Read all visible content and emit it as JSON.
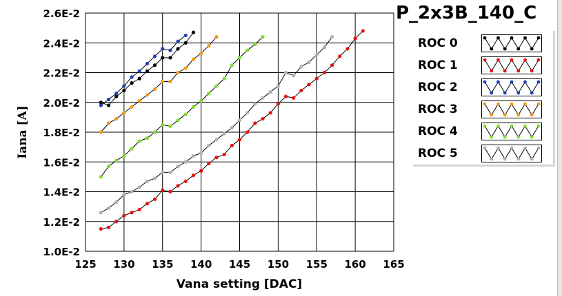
{
  "chart_data": {
    "type": "line",
    "title": "P_2x3B_140_C",
    "xlabel": "Vana setting [DAC]",
    "ylabel": "Iana [A]",
    "xlim": [
      125,
      165
    ],
    "ylim": [
      0.01,
      0.026
    ],
    "x_ticks": [
      125,
      130,
      135,
      140,
      145,
      150,
      155,
      160,
      165
    ],
    "x_tick_labels": [
      "125",
      "130",
      "135",
      "140",
      "145",
      "150",
      "155",
      "160",
      "165"
    ],
    "y_ticks": [
      0.01,
      0.012,
      0.014,
      0.016,
      0.018,
      0.02,
      0.022,
      0.024,
      0.026
    ],
    "y_tick_labels": [
      "1.0E-2",
      "1.2E-2",
      "1.4E-2",
      "1.6E-2",
      "1.8E-2",
      "2.0E-2",
      "2.2E-2",
      "2.4E-2",
      "2.6E-2"
    ],
    "grid": true,
    "legend_placement": "right",
    "series": [
      {
        "name": "ROC 0",
        "color": "#000000",
        "x": [
          127,
          128,
          129,
          130,
          131,
          132,
          133,
          134,
          135,
          136,
          137,
          138,
          139
        ],
        "y": [
          0.02,
          0.0198,
          0.0204,
          0.0208,
          0.0213,
          0.0216,
          0.0221,
          0.0225,
          0.023,
          0.023,
          0.0236,
          0.024,
          0.0247
        ]
      },
      {
        "name": "ROC 1",
        "color": "#e8120c",
        "x": [
          127,
          128,
          129,
          130,
          131,
          132,
          133,
          134,
          135,
          136,
          137,
          138,
          139,
          140,
          141,
          142,
          143,
          144,
          145,
          146,
          147,
          148,
          149,
          150,
          151,
          152,
          153,
          154,
          155,
          156,
          157,
          158,
          159,
          160,
          161
        ],
        "y": [
          0.0115,
          0.0116,
          0.012,
          0.0124,
          0.0126,
          0.0128,
          0.0132,
          0.0135,
          0.0141,
          0.014,
          0.0144,
          0.0147,
          0.0151,
          0.0154,
          0.0159,
          0.0163,
          0.0165,
          0.0171,
          0.0175,
          0.018,
          0.0186,
          0.0189,
          0.0193,
          0.0199,
          0.0204,
          0.0203,
          0.0208,
          0.0212,
          0.0216,
          0.022,
          0.0225,
          0.0231,
          0.0236,
          0.0243,
          0.0248
        ]
      },
      {
        "name": "ROC 2",
        "color": "#1c3fc0",
        "x": [
          127,
          128,
          129,
          130,
          131,
          132,
          133,
          134,
          135,
          136,
          137,
          138
        ],
        "y": [
          0.0198,
          0.0202,
          0.0206,
          0.0211,
          0.0217,
          0.0221,
          0.0226,
          0.0231,
          0.0236,
          0.0235,
          0.0241,
          0.0245
        ]
      },
      {
        "name": "ROC 3",
        "color": "#f59a12",
        "x": [
          127,
          128,
          129,
          130,
          131,
          132,
          133,
          134,
          135,
          136,
          137,
          138,
          139,
          140,
          141,
          142
        ],
        "y": [
          0.018,
          0.0186,
          0.0189,
          0.0193,
          0.0197,
          0.0201,
          0.0205,
          0.0209,
          0.0214,
          0.0214,
          0.022,
          0.0223,
          0.0229,
          0.0233,
          0.0238,
          0.0244
        ]
      },
      {
        "name": "ROC 4",
        "color": "#7fdc2a",
        "x": [
          127,
          128,
          129,
          130,
          131,
          132,
          133,
          134,
          135,
          136,
          137,
          138,
          139,
          140,
          141,
          142,
          143,
          144,
          145,
          146,
          147,
          148
        ],
        "y": [
          0.015,
          0.0157,
          0.0161,
          0.0164,
          0.0169,
          0.0174,
          0.0176,
          0.018,
          0.0185,
          0.0184,
          0.0188,
          0.0192,
          0.0197,
          0.0201,
          0.0206,
          0.0211,
          0.0216,
          0.0225,
          0.023,
          0.0235,
          0.0239,
          0.0244
        ]
      },
      {
        "name": "ROC 5",
        "color": "#b0b0b0",
        "x": [
          127,
          128,
          129,
          130,
          131,
          132,
          133,
          134,
          135,
          136,
          137,
          138,
          139,
          140,
          141,
          142,
          143,
          144,
          145,
          146,
          147,
          148,
          149,
          150,
          151,
          152,
          153,
          154,
          155,
          156,
          157
        ],
        "y": [
          0.0126,
          0.0129,
          0.0133,
          0.0138,
          0.014,
          0.0143,
          0.0147,
          0.0149,
          0.0153,
          0.0153,
          0.0157,
          0.016,
          0.0164,
          0.0166,
          0.0171,
          0.0175,
          0.0179,
          0.0183,
          0.0188,
          0.0193,
          0.0199,
          0.0203,
          0.0207,
          0.0211,
          0.022,
          0.0218,
          0.0224,
          0.0227,
          0.0232,
          0.0237,
          0.0244
        ]
      }
    ]
  }
}
